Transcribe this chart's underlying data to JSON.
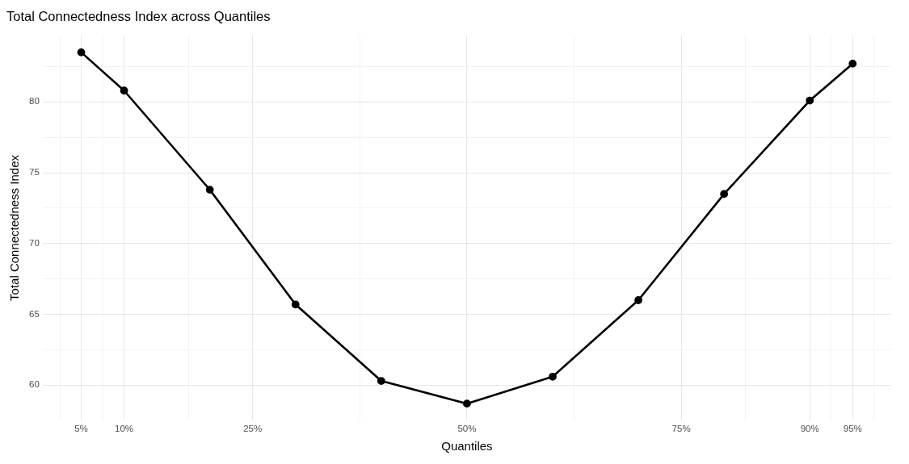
{
  "chart_data": {
    "type": "line",
    "title": "Total Connectedness Index across Quantiles",
    "xlabel": "Quantiles",
    "ylabel": "Total Connectedness Index",
    "x": [
      5,
      10,
      20,
      30,
      40,
      50,
      60,
      70,
      80,
      90,
      95
    ],
    "series": [
      {
        "color": "#000000",
        "values": [
          83.5,
          80.8,
          73.8,
          65.7,
          60.3,
          58.7,
          60.6,
          66.0,
          73.5,
          80.1,
          82.7
        ]
      }
    ],
    "xlim": [
      0.5,
      99.5
    ],
    "xticks": [
      {
        "value": 2.5,
        "label": null
      },
      {
        "value": 5,
        "label": "5%"
      },
      {
        "value": 7.5,
        "label": null
      },
      {
        "value": 10,
        "label": "10%"
      },
      {
        "value": 17.5,
        "label": null
      },
      {
        "value": 25,
        "label": "25%"
      },
      {
        "value": 37.5,
        "label": null
      },
      {
        "value": 50,
        "label": "50%"
      },
      {
        "value": 62.5,
        "label": null
      },
      {
        "value": 75,
        "label": "75%"
      },
      {
        "value": 82.5,
        "label": null
      },
      {
        "value": 90,
        "label": "90%"
      },
      {
        "value": 92.5,
        "label": null
      },
      {
        "value": 95,
        "label": "95%"
      },
      {
        "value": 97.5,
        "label": null
      }
    ],
    "ylim": [
      57.5,
      84.7
    ],
    "yticks": [
      60,
      {
        "value": 62.5,
        "label": null
      },
      65,
      {
        "value": 67.5,
        "label": null
      },
      70,
      {
        "value": 72.5,
        "label": null
      },
      75,
      {
        "value": 77.5,
        "label": null
      },
      80,
      {
        "value": 82.5,
        "label": null
      }
    ],
    "grid": true,
    "marker": "circle",
    "line_style": "solid"
  }
}
